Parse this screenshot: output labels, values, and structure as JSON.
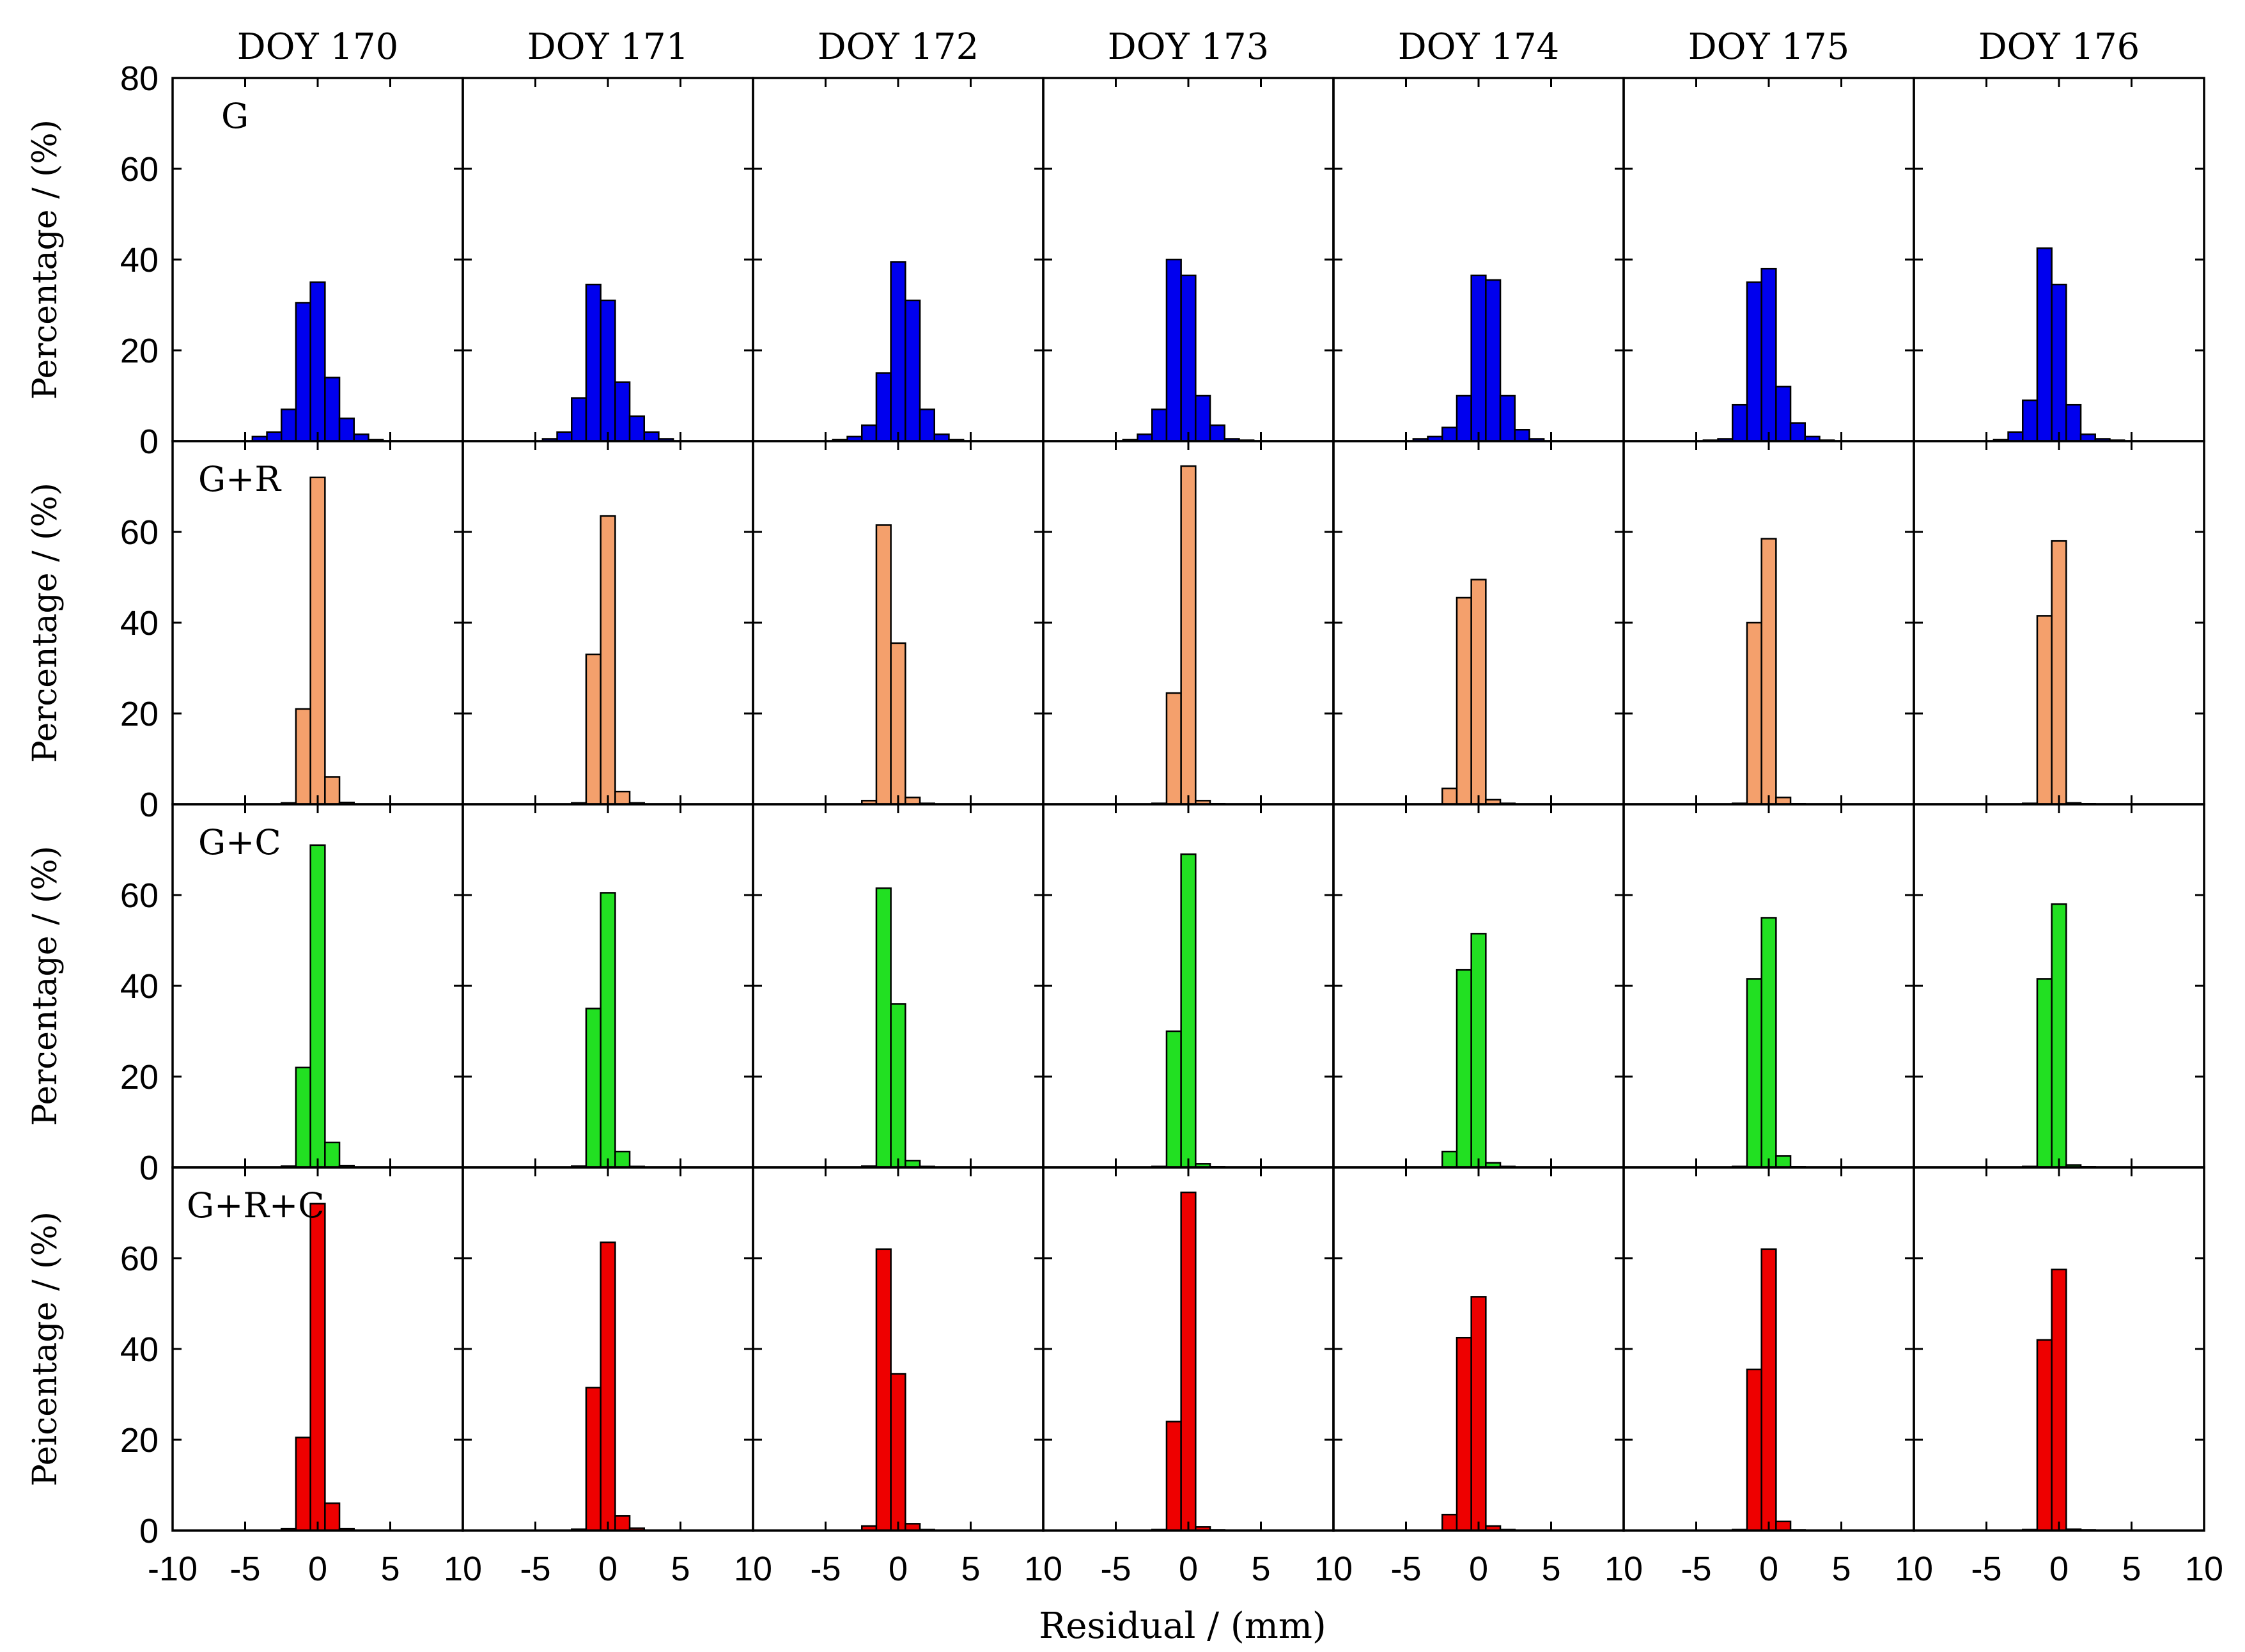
{
  "chart_data": {
    "type": "bar",
    "kind": "histogram-grid",
    "columns": [
      "DOY 170",
      "DOY 171",
      "DOY 172",
      "DOY 173",
      "DOY 174",
      "DOY 175",
      "DOY 176"
    ],
    "xlabel": "Residual / (mm)",
    "xlim": [
      -10,
      10
    ],
    "xticks": [
      -10,
      -5,
      0,
      5,
      10
    ],
    "x_tick_labels": [
      "-10",
      "-5",
      "0",
      "5",
      "10"
    ],
    "x_tick_labels_inner": [
      "10",
      "-5",
      "0",
      "5"
    ],
    "bin_width": 1,
    "bin_centers": [
      -4,
      -3,
      -2,
      -1,
      0,
      1,
      2,
      3,
      4
    ],
    "rows": [
      {
        "label": "G",
        "ylabel": "Percentage / (%)",
        "color": "#0000ee",
        "ylim": [
          0,
          80
        ],
        "yticks": [
          0,
          20,
          40,
          60,
          80
        ],
        "series": [
          {
            "name": "DOY 170",
            "values": [
              1,
              2,
              7,
              30.5,
              35,
              14,
              5,
              1.5,
              0.3
            ]
          },
          {
            "name": "DOY 171",
            "values": [
              0.5,
              2,
              9.5,
              34.5,
              31,
              13,
              5.5,
              2,
              0.5
            ]
          },
          {
            "name": "DOY 172",
            "values": [
              0.3,
              1,
              3.5,
              15,
              39.5,
              31,
              7,
              1.5,
              0.3
            ]
          },
          {
            "name": "DOY 173",
            "values": [
              0.3,
              1.5,
              7,
              40,
              36.5,
              10,
              3.5,
              0.5,
              0.2
            ]
          },
          {
            "name": "DOY 174",
            "values": [
              0.5,
              1,
              3,
              10,
              36.5,
              35.5,
              10,
              2.5,
              0.5
            ]
          },
          {
            "name": "DOY 175",
            "values": [
              0.2,
              0.5,
              8,
              35,
              38,
              12,
              4,
              1,
              0.2
            ]
          },
          {
            "name": "DOY 176",
            "values": [
              0.3,
              2,
              9,
              42.5,
              34.5,
              8,
              1.5,
              0.5,
              0.2
            ]
          }
        ]
      },
      {
        "label": "G+R",
        "ylabel": "Percentage / (%)",
        "color": "#f4a06c",
        "ylim": [
          0,
          80
        ],
        "yticks": [
          0,
          20,
          40,
          60
        ],
        "series": [
          {
            "name": "DOY 170",
            "values": [
              0,
              0,
              0.3,
              21,
              72,
              6,
              0.4,
              0,
              0
            ]
          },
          {
            "name": "DOY 171",
            "values": [
              0,
              0,
              0.3,
              33,
              63.5,
              2.8,
              0.3,
              0,
              0
            ]
          },
          {
            "name": "DOY 172",
            "values": [
              0,
              0,
              0.8,
              61.5,
              35.5,
              1.5,
              0.2,
              0,
              0
            ]
          },
          {
            "name": "DOY 173",
            "values": [
              0,
              0,
              0.2,
              24.5,
              74.5,
              0.8,
              0.1,
              0,
              0
            ]
          },
          {
            "name": "DOY 174",
            "values": [
              0,
              0,
              3.5,
              45.5,
              49.5,
              1,
              0.2,
              0,
              0
            ]
          },
          {
            "name": "DOY 175",
            "values": [
              0,
              0,
              0.2,
              40,
              58.5,
              1.5,
              0.1,
              0,
              0
            ]
          },
          {
            "name": "DOY 176",
            "values": [
              0,
              0,
              0.2,
              41.5,
              58,
              0.3,
              0.1,
              0,
              0
            ]
          }
        ]
      },
      {
        "label": "G+C",
        "ylabel": "Percentage / (%)",
        "color": "#22e022",
        "ylim": [
          0,
          80
        ],
        "yticks": [
          0,
          20,
          40,
          60
        ],
        "series": [
          {
            "name": "DOY 170",
            "values": [
              0,
              0,
              0.3,
              22,
              71,
              5.5,
              0.4,
              0,
              0
            ]
          },
          {
            "name": "DOY 171",
            "values": [
              0,
              0,
              0.3,
              35,
              60.5,
              3.5,
              0.2,
              0,
              0
            ]
          },
          {
            "name": "DOY 172",
            "values": [
              0,
              0,
              0.3,
              61.5,
              36,
              1.5,
              0.2,
              0,
              0
            ]
          },
          {
            "name": "DOY 173",
            "values": [
              0,
              0,
              0.2,
              30,
              69,
              0.8,
              0.1,
              0,
              0
            ]
          },
          {
            "name": "DOY 174",
            "values": [
              0,
              0,
              3.5,
              43.5,
              51.5,
              1,
              0.2,
              0,
              0
            ]
          },
          {
            "name": "DOY 175",
            "values": [
              0,
              0,
              0.2,
              41.5,
              55,
              2.5,
              0.1,
              0,
              0
            ]
          },
          {
            "name": "DOY 176",
            "values": [
              0,
              0,
              0.2,
              41.5,
              58,
              0.5,
              0.1,
              0,
              0
            ]
          }
        ]
      },
      {
        "label": "G+R+C",
        "ylabel": "Peicentage / (%)",
        "color": "#ee0000",
        "ylim": [
          0,
          80
        ],
        "yticks": [
          0,
          20,
          40,
          60
        ],
        "series": [
          {
            "name": "DOY 170",
            "values": [
              0,
              0,
              0.4,
              20.5,
              72,
              6,
              0.4,
              0,
              0
            ]
          },
          {
            "name": "DOY 171",
            "values": [
              0,
              0,
              0.3,
              31.5,
              63.5,
              3.2,
              0.5,
              0,
              0
            ]
          },
          {
            "name": "DOY 172",
            "values": [
              0,
              0,
              1,
              62,
              34.5,
              1.5,
              0.2,
              0,
              0
            ]
          },
          {
            "name": "DOY 173",
            "values": [
              0,
              0,
              0.2,
              24,
              74.5,
              0.8,
              0.1,
              0,
              0
            ]
          },
          {
            "name": "DOY 174",
            "values": [
              0,
              0,
              3.5,
              42.5,
              51.5,
              1,
              0.2,
              0,
              0
            ]
          },
          {
            "name": "DOY 175",
            "values": [
              0,
              0,
              0.2,
              35.5,
              62,
              2,
              0.1,
              0,
              0
            ]
          },
          {
            "name": "DOY 176",
            "values": [
              0,
              0,
              0.2,
              42,
              57.5,
              0.3,
              0.1,
              0,
              0
            ]
          }
        ]
      }
    ]
  }
}
